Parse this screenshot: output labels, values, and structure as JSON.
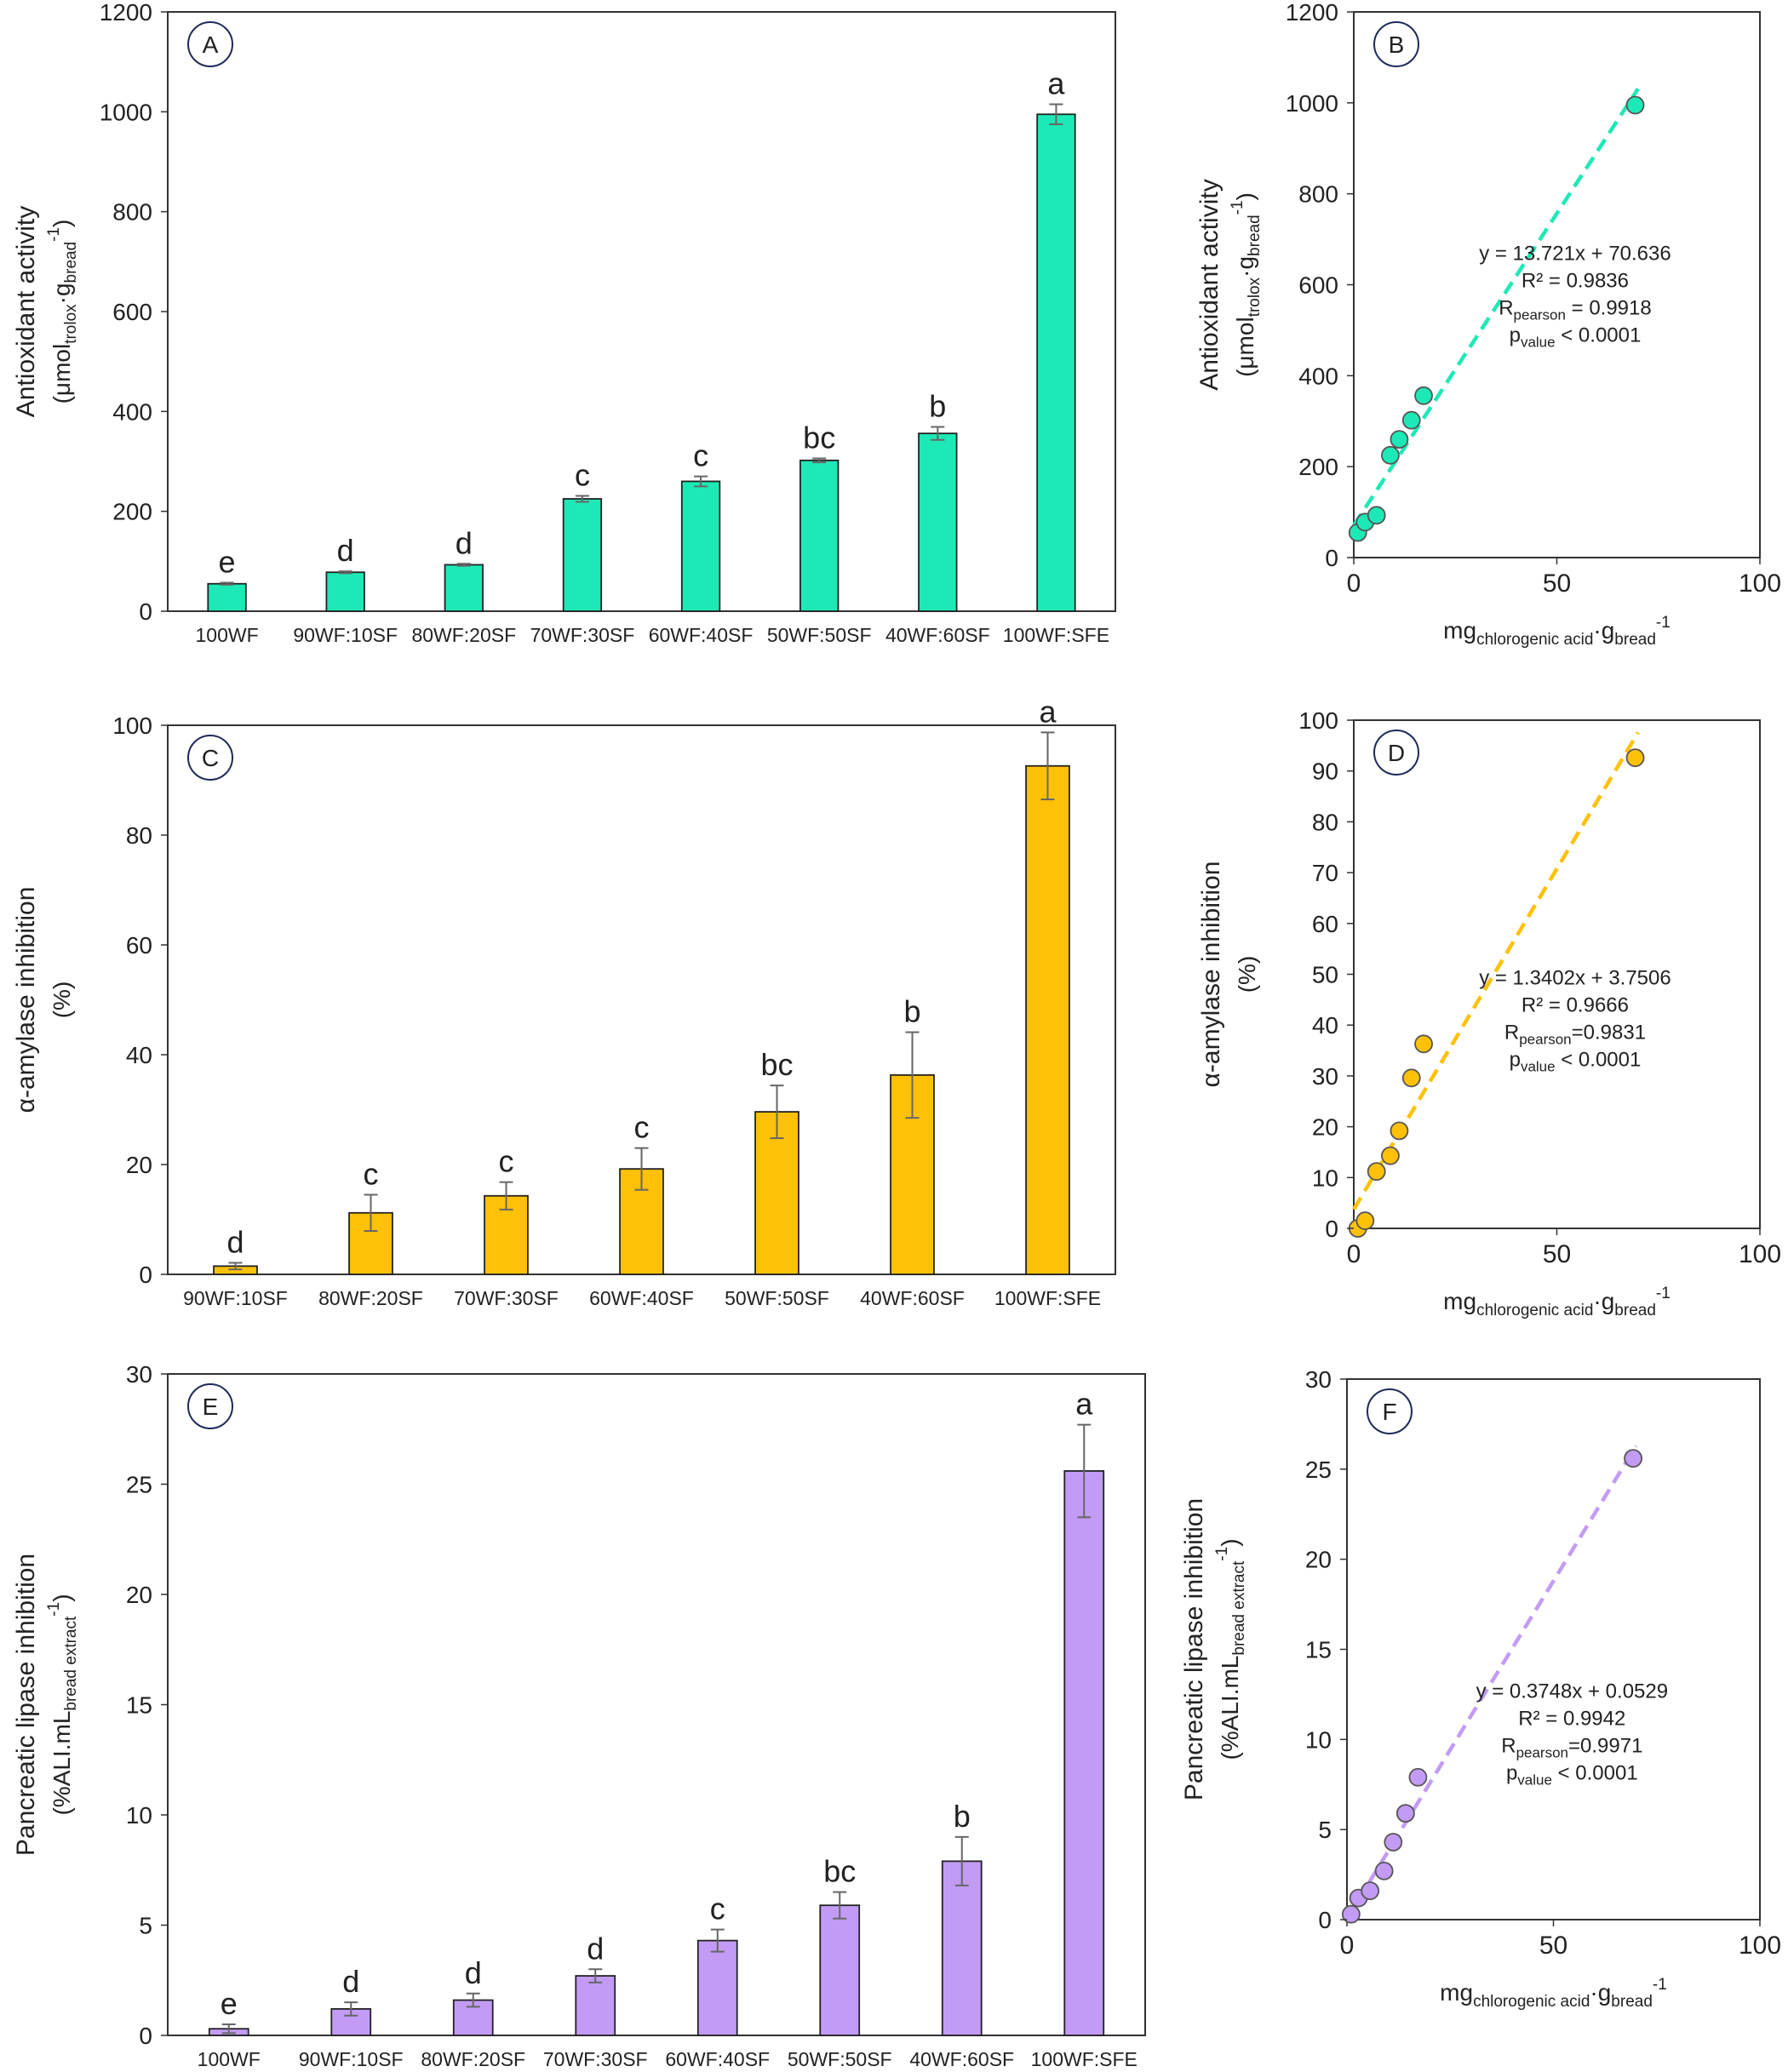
{
  "chart_data": [
    {
      "id": "A",
      "type": "bar",
      "panel_label": "A",
      "ylabel_line1": "Antioxidant activity",
      "ylabel_line2": "(μmol",
      "ylabel_sub1": "trolox",
      "ylabel_mid": "·g",
      "ylabel_sub2": "bread",
      "ylabel_sup": "-1",
      "ylabel_end": ")",
      "ylim": [
        0,
        1200
      ],
      "yticks": [
        0,
        200,
        400,
        600,
        800,
        1000,
        1200
      ],
      "color": "#1de9b6",
      "categories": [
        "100WF",
        "90WF:10SF",
        "80WF:20SF",
        "70WF:30SF",
        "60WF:40SF",
        "50WF:50SF",
        "40WF:60SF",
        "100WF:SFE"
      ],
      "values": [
        55,
        78,
        93,
        225,
        260,
        302,
        356,
        995
      ],
      "errors": [
        2,
        2,
        2,
        6,
        10,
        4,
        13,
        20
      ],
      "letters": [
        "e",
        "d",
        "d",
        "c",
        "c",
        "bc",
        "b",
        "a"
      ]
    },
    {
      "id": "B",
      "type": "scatter",
      "panel_label": "B",
      "ylabel_line1": "Antioxidant activity",
      "ylabel_line2": "(μmol",
      "ylabel_sub1": "trolox",
      "ylabel_mid": "·g",
      "ylabel_sub2": "bread",
      "ylabel_sup": "-1",
      "ylabel_end": ")",
      "xlabel_main": "mg",
      "xlabel_sub1": "chlorogenic acid",
      "xlabel_mid": "·g",
      "xlabel_sub2": "bread",
      "xlabel_sup": "-1",
      "xlim": [
        0,
        100
      ],
      "xticks": [
        0,
        50,
        100
      ],
      "ylim": [
        0,
        1200
      ],
      "yticks": [
        0,
        200,
        400,
        600,
        800,
        1000,
        1200
      ],
      "color": "#1de9b6",
      "line_color": "#1de9b6",
      "x": [
        1.0,
        2.8,
        5.6,
        9.0,
        11.2,
        14.2,
        17.2,
        69.3
      ],
      "y": [
        55,
        78,
        93,
        225,
        260,
        302,
        356,
        995
      ],
      "fit_x": [
        0,
        70
      ],
      "fit_slope": 13.721,
      "fit_intercept": 70.636,
      "eq_text": "y = 13.721x + 70.636",
      "r2_text": "R² = 0.9836",
      "r_label": "R",
      "r_sub": "pearson",
      "r_val": " = 0.9918",
      "p_label": "p",
      "p_sub": "value",
      "p_val": " < 0.0001"
    },
    {
      "id": "C",
      "type": "bar",
      "panel_label": "C",
      "ylabel_line1": "α-amylase inhibition",
      "ylabel_line2": "(%)",
      "ylim": [
        0,
        100
      ],
      "yticks": [
        0,
        20,
        40,
        60,
        80,
        100
      ],
      "color": "#ffc107",
      "categories": [
        "90WF:10SF",
        "80WF:20SF",
        "70WF:30SF",
        "60WF:40SF",
        "50WF:50SF",
        "40WF:60SF",
        "100WF:SFE"
      ],
      "values": [
        1.5,
        11.2,
        14.3,
        19.2,
        29.6,
        36.3,
        92.6
      ],
      "errors": [
        0.6,
        3.3,
        2.5,
        3.8,
        4.8,
        7.8,
        6.1
      ],
      "letters": [
        "d",
        "c",
        "c",
        "c",
        "bc",
        "b",
        "a"
      ]
    },
    {
      "id": "D",
      "type": "scatter",
      "panel_label": "D",
      "ylabel_line1": "α-amylase inhibition",
      "ylabel_line2": "(%)",
      "xlabel_main": "mg",
      "xlabel_sub1": "chlorogenic acid",
      "xlabel_mid": "·g",
      "xlabel_sub2": "bread",
      "xlabel_sup": "-1",
      "xlim": [
        0,
        100
      ],
      "xticks": [
        0,
        50,
        100
      ],
      "ylim": [
        0,
        100
      ],
      "yticks": [
        0,
        10,
        20,
        30,
        40,
        50,
        60,
        70,
        80,
        90,
        100
      ],
      "color": "#ffc107",
      "line_color": "#ffc107",
      "x": [
        1.0,
        2.8,
        5.6,
        9.0,
        11.2,
        14.2,
        17.2,
        69.3
      ],
      "y": [
        0,
        1.5,
        11.2,
        14.3,
        19.2,
        29.6,
        36.3,
        92.6
      ],
      "fit_x": [
        0,
        70
      ],
      "fit_slope": 1.3402,
      "fit_intercept": 3.7506,
      "eq_text": "y = 1.3402x + 3.7506",
      "r2_text": "R² = 0.9666",
      "r_label": "R",
      "r_sub": "pearson",
      "r_val": "=0.9831",
      "p_label": "p",
      "p_sub": "value",
      "p_val": " < 0.0001"
    },
    {
      "id": "E",
      "type": "bar",
      "panel_label": "E",
      "ylabel_line1": "Pancreatic lipase inhibition",
      "ylabel_line2": "(%ALI.mL",
      "ylabel_sub1": "bread extract",
      "ylabel_mid": "",
      "ylabel_sub2": "",
      "ylabel_sup": "-1",
      "ylabel_end": ")",
      "ylim": [
        0,
        30
      ],
      "yticks": [
        0,
        5,
        10,
        15,
        20,
        25,
        30
      ],
      "color": "#c39bf5",
      "categories": [
        "100WF",
        "90WF:10SF",
        "80WF:20SF",
        "70WF:30SF",
        "60WF:40SF",
        "50WF:50SF",
        "40WF:60SF",
        "100WF:SFE"
      ],
      "values": [
        0.3,
        1.2,
        1.6,
        2.7,
        4.3,
        5.9,
        7.9,
        25.6
      ],
      "errors": [
        0.2,
        0.3,
        0.3,
        0.3,
        0.5,
        0.6,
        1.1,
        2.1
      ],
      "letters": [
        "e",
        "d",
        "d",
        "d",
        "c",
        "bc",
        "b",
        "a"
      ]
    },
    {
      "id": "F",
      "type": "scatter",
      "panel_label": "F",
      "ylabel_line1": "Pancreatic lipase inhibition",
      "ylabel_line2": "(%ALI.mL",
      "ylabel_sub1": "bread extract",
      "ylabel_mid": "",
      "ylabel_sub2": "",
      "ylabel_sup": "-1",
      "ylabel_end": ")",
      "xlabel_main": "mg",
      "xlabel_sub1": "chlorogenic acid",
      "xlabel_mid": "·g",
      "xlabel_sub2": "bread",
      "xlabel_sup": "-1",
      "xlim": [
        0,
        100
      ],
      "xticks": [
        0,
        50,
        100
      ],
      "ylim": [
        0,
        30
      ],
      "yticks": [
        0,
        5,
        10,
        15,
        20,
        25,
        30
      ],
      "color": "#c39bf5",
      "line_color": "#c39bf5",
      "x": [
        1.0,
        2.8,
        5.6,
        9.0,
        11.2,
        14.2,
        17.2,
        69.3
      ],
      "y": [
        0.3,
        1.2,
        1.6,
        2.7,
        4.3,
        5.9,
        7.9,
        25.6
      ],
      "fit_x": [
        0,
        70
      ],
      "fit_slope": 0.3748,
      "fit_intercept": 0.0529,
      "eq_text": "y = 0.3748x + 0.0529",
      "r2_text": "R² = 0.9942",
      "r_label": "R",
      "r_sub": "pearson",
      "r_val": "=0.9971",
      "p_label": "p",
      "p_sub": "value",
      "p_val": " < 0.0001"
    }
  ]
}
